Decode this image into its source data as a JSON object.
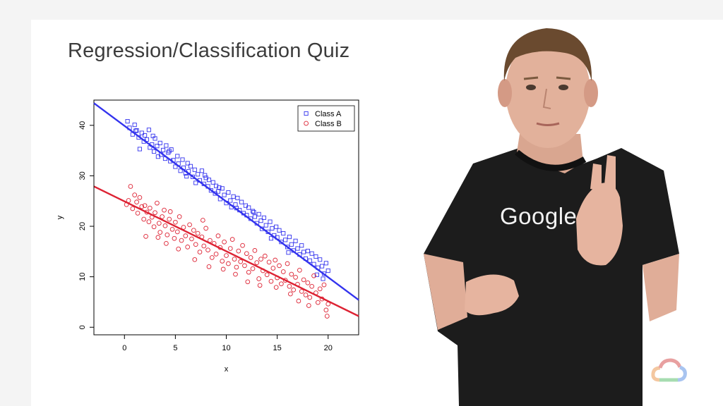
{
  "slide": {
    "title": "Regression/Classification Quiz"
  },
  "presenter": {
    "shirt_text": "Google"
  },
  "logo": {
    "icon": "google-cloud-logo-icon"
  },
  "colors": {
    "class_a": "#3333ee",
    "class_b": "#dd2233",
    "axis": "#000000"
  },
  "chart_data": {
    "type": "scatter",
    "title": "",
    "xlabel": "x",
    "ylabel": "y",
    "xlim": [
      -3,
      23
    ],
    "ylim": [
      -1.5,
      45
    ],
    "x_ticks": [
      0,
      5,
      10,
      15,
      20
    ],
    "y_ticks": [
      0,
      10,
      20,
      30,
      40
    ],
    "grid": false,
    "legend_position": "top-right",
    "series": [
      {
        "name": "Class A",
        "marker": "square",
        "color": "#3333ee",
        "points": [
          [
            0.3,
            40.8
          ],
          [
            0.5,
            39.5
          ],
          [
            0.8,
            38.2
          ],
          [
            1.0,
            40.1
          ],
          [
            1.2,
            39.0
          ],
          [
            1.4,
            37.6
          ],
          [
            1.5,
            35.3
          ],
          [
            1.7,
            38.5
          ],
          [
            1.9,
            36.8
          ],
          [
            2.0,
            38.0
          ],
          [
            2.2,
            37.2
          ],
          [
            2.4,
            39.1
          ],
          [
            2.5,
            35.6
          ],
          [
            2.7,
            36.2
          ],
          [
            2.9,
            34.8
          ],
          [
            3.0,
            37.4
          ],
          [
            3.2,
            35.9
          ],
          [
            3.3,
            33.8
          ],
          [
            3.5,
            36.5
          ],
          [
            3.6,
            34.2
          ],
          [
            3.8,
            35.1
          ],
          [
            4.0,
            33.4
          ],
          [
            4.1,
            36.0
          ],
          [
            4.3,
            34.6
          ],
          [
            4.5,
            32.9
          ],
          [
            4.6,
            35.2
          ],
          [
            4.8,
            33.1
          ],
          [
            5.0,
            31.8
          ],
          [
            5.2,
            33.9
          ],
          [
            5.3,
            32.4
          ],
          [
            5.5,
            31.0
          ],
          [
            5.7,
            33.2
          ],
          [
            5.8,
            31.6
          ],
          [
            6.0,
            30.5
          ],
          [
            6.2,
            32.5
          ],
          [
            6.3,
            30.9
          ],
          [
            6.5,
            31.9
          ],
          [
            6.7,
            29.8
          ],
          [
            6.9,
            31.2
          ],
          [
            7.0,
            28.6
          ],
          [
            7.2,
            30.3
          ],
          [
            7.4,
            29.1
          ],
          [
            7.6,
            31.0
          ],
          [
            7.8,
            28.4
          ],
          [
            8.0,
            29.6
          ],
          [
            8.2,
            27.9
          ],
          [
            8.3,
            29.2
          ],
          [
            8.5,
            27.1
          ],
          [
            8.7,
            28.7
          ],
          [
            8.9,
            26.5
          ],
          [
            9.0,
            28.0
          ],
          [
            9.2,
            26.9
          ],
          [
            9.4,
            25.4
          ],
          [
            9.6,
            27.5
          ],
          [
            9.8,
            26.2
          ],
          [
            10.0,
            24.6
          ],
          [
            10.2,
            26.7
          ],
          [
            10.4,
            25.1
          ],
          [
            10.5,
            23.8
          ],
          [
            10.7,
            25.9
          ],
          [
            10.9,
            24.3
          ],
          [
            11.1,
            25.6
          ],
          [
            11.3,
            23.2
          ],
          [
            11.5,
            24.8
          ],
          [
            11.7,
            22.6
          ],
          [
            11.9,
            24.1
          ],
          [
            12.0,
            22.2
          ],
          [
            12.2,
            23.7
          ],
          [
            12.4,
            21.5
          ],
          [
            12.6,
            23.0
          ],
          [
            12.8,
            21.9
          ],
          [
            13.0,
            20.6
          ],
          [
            13.2,
            22.4
          ],
          [
            13.4,
            21.1
          ],
          [
            13.5,
            19.5
          ],
          [
            13.7,
            21.7
          ],
          [
            13.9,
            20.2
          ],
          [
            14.1,
            18.9
          ],
          [
            14.3,
            20.9
          ],
          [
            14.5,
            19.6
          ],
          [
            14.7,
            18.2
          ],
          [
            14.9,
            19.9
          ],
          [
            15.0,
            17.8
          ],
          [
            15.2,
            19.2
          ],
          [
            15.4,
            16.9
          ],
          [
            15.6,
            18.6
          ],
          [
            15.8,
            17.3
          ],
          [
            16.0,
            15.9
          ],
          [
            16.2,
            17.9
          ],
          [
            16.4,
            16.4
          ],
          [
            16.6,
            15.2
          ],
          [
            16.8,
            17.1
          ],
          [
            17.0,
            15.6
          ],
          [
            17.2,
            14.4
          ],
          [
            17.4,
            16.2
          ],
          [
            17.6,
            14.9
          ],
          [
            17.8,
            13.6
          ],
          [
            18.0,
            15.1
          ],
          [
            18.2,
            13.2
          ],
          [
            18.4,
            14.6
          ],
          [
            18.6,
            12.5
          ],
          [
            18.8,
            14.0
          ],
          [
            19.0,
            11.8
          ],
          [
            19.2,
            13.4
          ],
          [
            19.4,
            12.1
          ],
          [
            19.6,
            10.6
          ],
          [
            19.8,
            12.7
          ],
          [
            20.0,
            11.2
          ],
          [
            19.5,
            9.6
          ],
          [
            18.9,
            10.4
          ],
          [
            1.1,
            38.9
          ],
          [
            2.8,
            37.9
          ],
          [
            4.4,
            34.9
          ],
          [
            6.1,
            29.9
          ],
          [
            7.9,
            30.1
          ],
          [
            9.3,
            27.7
          ],
          [
            11.0,
            23.6
          ],
          [
            12.7,
            22.8
          ],
          [
            14.4,
            17.6
          ],
          [
            16.1,
            14.8
          ]
        ]
      },
      {
        "name": "Class B",
        "marker": "circle",
        "color": "#dd2233",
        "points": [
          [
            0.2,
            24.3
          ],
          [
            0.4,
            25.1
          ],
          [
            0.6,
            27.9
          ],
          [
            0.8,
            23.5
          ],
          [
            1.0,
            26.2
          ],
          [
            1.2,
            24.8
          ],
          [
            1.3,
            22.6
          ],
          [
            1.5,
            25.7
          ],
          [
            1.7,
            23.9
          ],
          [
            1.9,
            21.4
          ],
          [
            2.0,
            24.1
          ],
          [
            2.2,
            22.8
          ],
          [
            2.4,
            20.9
          ],
          [
            2.5,
            23.6
          ],
          [
            2.7,
            21.8
          ],
          [
            2.9,
            19.9
          ],
          [
            3.0,
            22.7
          ],
          [
            3.2,
            24.6
          ],
          [
            3.4,
            20.6
          ],
          [
            3.5,
            18.8
          ],
          [
            3.7,
            21.9
          ],
          [
            3.9,
            23.2
          ],
          [
            4.0,
            20.1
          ],
          [
            4.2,
            18.3
          ],
          [
            4.4,
            21.4
          ],
          [
            4.5,
            22.9
          ],
          [
            4.7,
            19.4
          ],
          [
            4.9,
            17.6
          ],
          [
            5.0,
            20.8
          ],
          [
            5.2,
            18.9
          ],
          [
            5.4,
            21.9
          ],
          [
            5.6,
            17.2
          ],
          [
            5.8,
            19.8
          ],
          [
            6.0,
            18.1
          ],
          [
            6.2,
            15.9
          ],
          [
            6.4,
            20.3
          ],
          [
            6.6,
            17.5
          ],
          [
            6.8,
            19.2
          ],
          [
            7.0,
            16.4
          ],
          [
            7.2,
            18.6
          ],
          [
            7.4,
            14.9
          ],
          [
            7.6,
            17.9
          ],
          [
            7.8,
            16.1
          ],
          [
            8.0,
            19.6
          ],
          [
            8.2,
            15.3
          ],
          [
            8.4,
            17.2
          ],
          [
            8.6,
            13.8
          ],
          [
            8.8,
            16.6
          ],
          [
            9.0,
            14.5
          ],
          [
            9.2,
            18.1
          ],
          [
            9.4,
            15.8
          ],
          [
            9.6,
            13.1
          ],
          [
            9.8,
            16.9
          ],
          [
            10.0,
            14.2
          ],
          [
            10.2,
            12.6
          ],
          [
            10.4,
            15.6
          ],
          [
            10.6,
            17.4
          ],
          [
            10.8,
            13.5
          ],
          [
            11.0,
            11.9
          ],
          [
            11.2,
            15.1
          ],
          [
            11.4,
            13.0
          ],
          [
            11.6,
            16.2
          ],
          [
            11.8,
            12.2
          ],
          [
            12.0,
            14.6
          ],
          [
            12.2,
            10.9
          ],
          [
            12.4,
            13.8
          ],
          [
            12.6,
            11.6
          ],
          [
            12.8,
            15.2
          ],
          [
            13.0,
            12.8
          ],
          [
            13.2,
            9.6
          ],
          [
            13.4,
            13.5
          ],
          [
            13.6,
            11.2
          ],
          [
            13.8,
            14.1
          ],
          [
            14.0,
            10.4
          ],
          [
            14.2,
            12.9
          ],
          [
            14.4,
            9.1
          ],
          [
            14.6,
            11.7
          ],
          [
            14.8,
            13.3
          ],
          [
            15.0,
            9.8
          ],
          [
            15.2,
            12.2
          ],
          [
            15.4,
            8.6
          ],
          [
            15.6,
            11.0
          ],
          [
            15.8,
            9.3
          ],
          [
            16.0,
            12.6
          ],
          [
            16.2,
            8.1
          ],
          [
            16.4,
            10.5
          ],
          [
            16.6,
            7.4
          ],
          [
            16.8,
            9.9
          ],
          [
            17.0,
            8.5
          ],
          [
            17.2,
            11.3
          ],
          [
            17.4,
            7.1
          ],
          [
            17.6,
            9.4
          ],
          [
            17.8,
            6.4
          ],
          [
            18.0,
            8.8
          ],
          [
            18.2,
            5.9
          ],
          [
            18.4,
            8.1
          ],
          [
            18.6,
            10.2
          ],
          [
            18.8,
            6.8
          ],
          [
            19.0,
            4.9
          ],
          [
            19.2,
            7.6
          ],
          [
            19.4,
            5.6
          ],
          [
            19.6,
            8.4
          ],
          [
            19.8,
            3.4
          ],
          [
            20.0,
            4.6
          ],
          [
            19.9,
            2.2
          ],
          [
            18.1,
            4.3
          ],
          [
            17.1,
            5.2
          ],
          [
            16.3,
            6.6
          ],
          [
            14.9,
            7.9
          ],
          [
            13.3,
            8.3
          ],
          [
            12.1,
            9.0
          ],
          [
            10.9,
            10.5
          ],
          [
            9.7,
            11.5
          ],
          [
            8.3,
            12.0
          ],
          [
            6.9,
            13.4
          ],
          [
            4.1,
            16.6
          ],
          [
            3.3,
            17.8
          ],
          [
            2.1,
            18.0
          ],
          [
            5.3,
            15.5
          ],
          [
            7.7,
            21.2
          ]
        ]
      }
    ],
    "regression_lines": [
      {
        "series": "Class A",
        "from": [
          -3,
          44.4
        ],
        "to": [
          23,
          5.4
        ]
      },
      {
        "series": "Class B",
        "from": [
          -3,
          27.9
        ],
        "to": [
          23,
          2.2
        ]
      }
    ]
  }
}
